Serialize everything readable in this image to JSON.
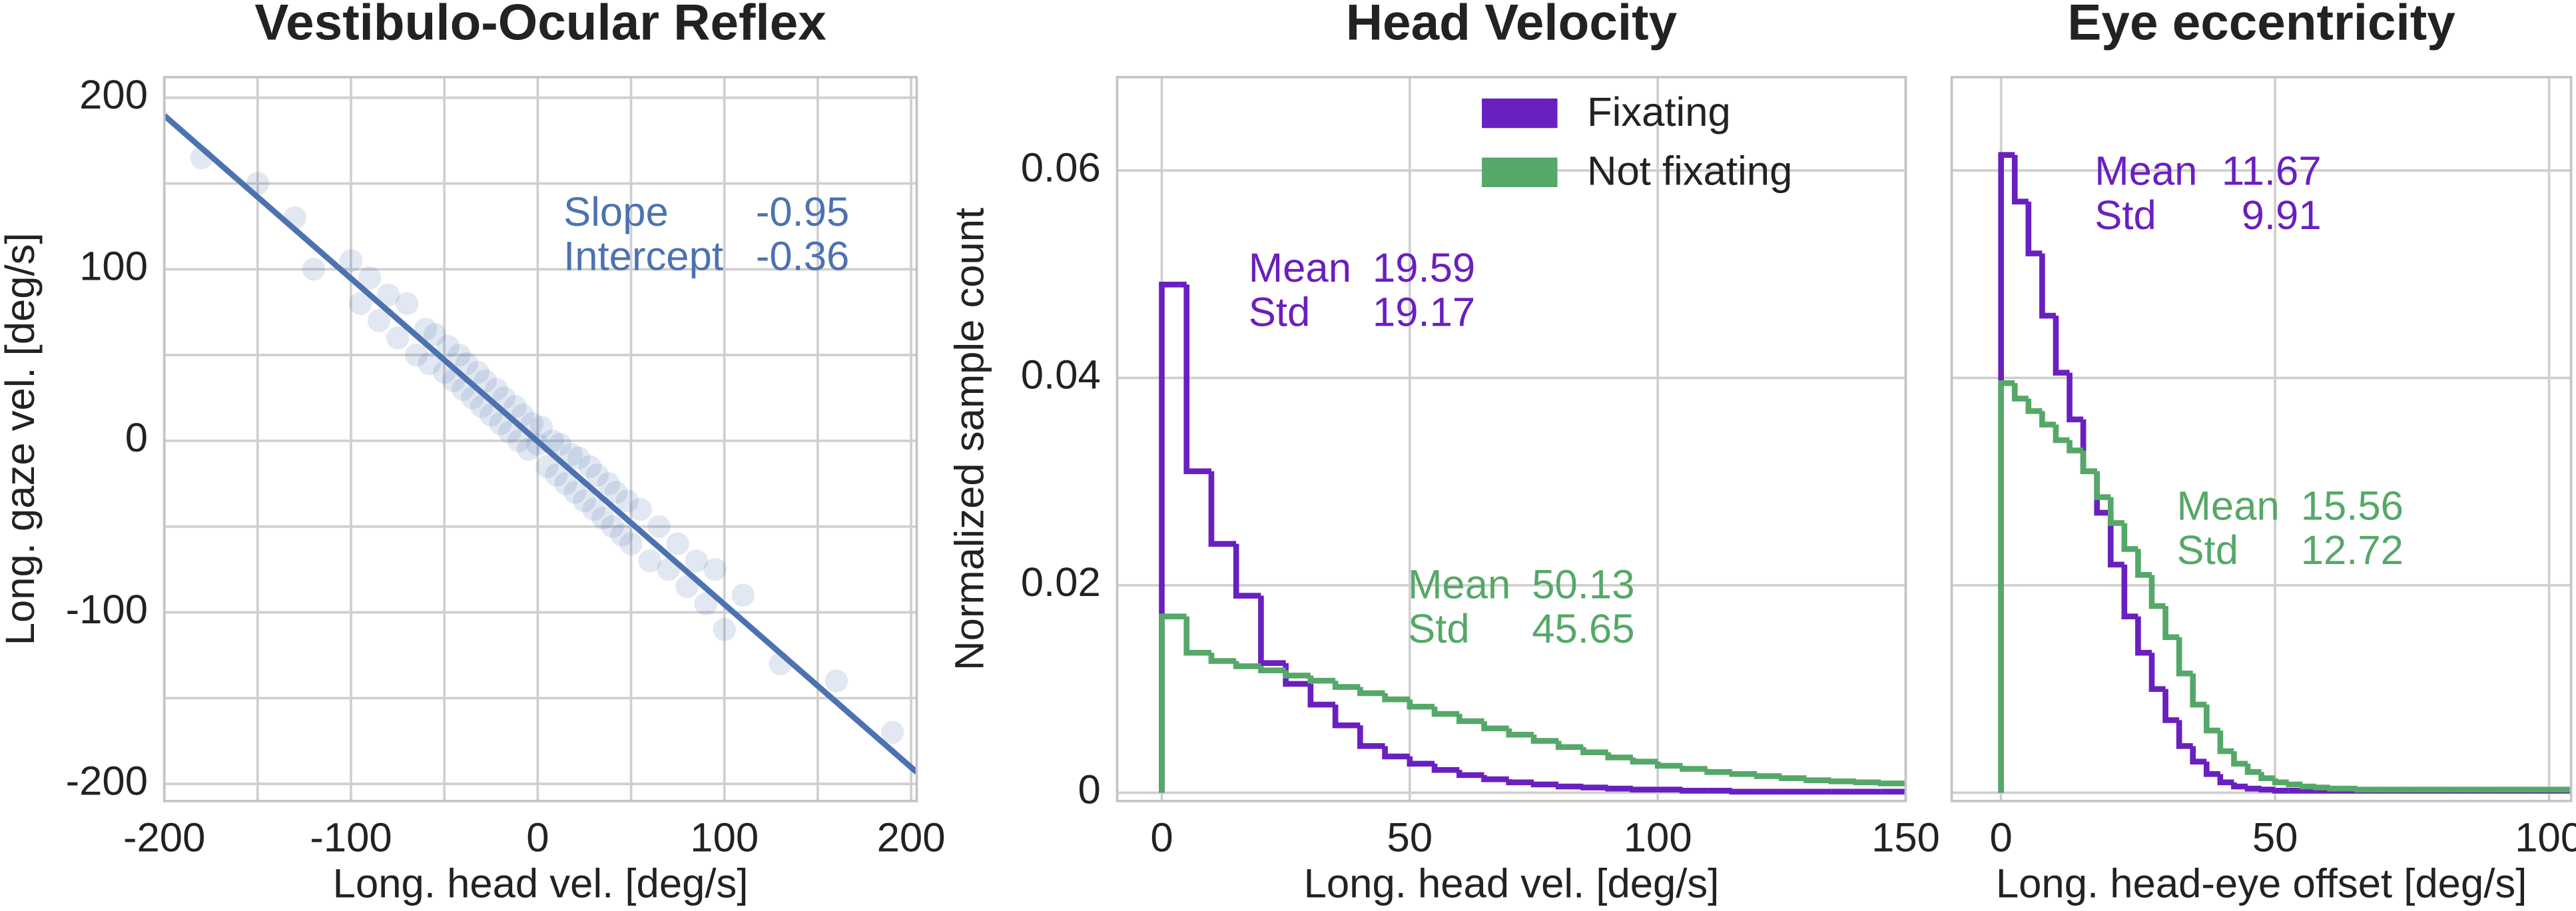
{
  "chart_data": [
    {
      "type": "scatter",
      "title": "Vestibulo-Ocular Reflex",
      "xlabel": "Long. head vel. [deg/s]",
      "ylabel": "Long. gaze vel. [deg/s]",
      "color": "#4c72b0",
      "xlim": [
        -200,
        203
      ],
      "ylim": [
        -210,
        212
      ],
      "xticks": [
        -200,
        -100,
        0,
        100,
        200
      ],
      "yticks": [
        -200,
        -100,
        0,
        100,
        200
      ],
      "xgrid": [
        -150,
        -50,
        50,
        150
      ],
      "ygrid": [
        -150,
        -50,
        50,
        150
      ],
      "x": [
        -180,
        -150,
        -120,
        -100,
        -95,
        -90,
        -85,
        -80,
        -75,
        -70,
        -65,
        -60,
        -58,
        -55,
        -50,
        -48,
        -45,
        -42,
        -40,
        -38,
        -35,
        -32,
        -30,
        -28,
        -25,
        -22,
        -20,
        -18,
        -15,
        -12,
        -10,
        -8,
        -5,
        -3,
        0,
        2,
        5,
        8,
        10,
        12,
        15,
        18,
        20,
        22,
        25,
        28,
        30,
        32,
        35,
        38,
        40,
        42,
        45,
        48,
        50,
        55,
        60,
        65,
        70,
        75,
        80,
        85,
        90,
        95,
        100,
        110,
        130,
        160,
        190,
        -130
      ],
      "y": [
        165,
        150,
        100,
        105,
        80,
        95,
        70,
        85,
        60,
        80,
        50,
        65,
        45,
        62,
        40,
        55,
        35,
        50,
        30,
        45,
        25,
        40,
        20,
        35,
        15,
        30,
        10,
        25,
        5,
        20,
        0,
        15,
        -5,
        10,
        -2,
        8,
        -15,
        0,
        -20,
        -2,
        -25,
        -8,
        -30,
        -10,
        -35,
        -15,
        -40,
        -20,
        -45,
        -25,
        -50,
        -30,
        -55,
        -35,
        -60,
        -40,
        -70,
        -50,
        -75,
        -60,
        -85,
        -70,
        -95,
        -75,
        -110,
        -90,
        -130,
        -140,
        -170,
        130
      ],
      "annotations": [
        {
          "label": "Slope",
          "value": -0.95
        },
        {
          "label": "Intercept",
          "value": -0.36
        }
      ]
    },
    {
      "type": "histogram",
      "title": "Head Velocity",
      "xlabel": "Long. head vel. [deg/s]",
      "ylabel": "Normalized sample count",
      "xlim": [
        -9,
        150
      ],
      "ylim": [
        -0.0008,
        0.069
      ],
      "xticks": [
        0,
        50,
        100,
        150
      ],
      "yticks": [
        0,
        0.02,
        0.04,
        0.06
      ],
      "legend": "upper right",
      "stat_labels": [
        "Mean",
        "Std"
      ],
      "bins": [
        0,
        5,
        10,
        15,
        20,
        25,
        30,
        35,
        40,
        45,
        50,
        55,
        60,
        65,
        70,
        75,
        80,
        85,
        90,
        95,
        100,
        105,
        110,
        115,
        120,
        125,
        130,
        135,
        140,
        145,
        150
      ],
      "series": [
        {
          "name": "Fixating",
          "color": "#6a1fbf",
          "mean": 19.59,
          "std": 19.17,
          "values": [
            0.049,
            0.031,
            0.024,
            0.019,
            0.0125,
            0.0105,
            0.0085,
            0.0065,
            0.0045,
            0.0035,
            0.0028,
            0.0022,
            0.0017,
            0.0013,
            0.001,
            0.0008,
            0.0006,
            0.0005,
            0.0004,
            0.0003,
            0.0003,
            0.0002,
            0.0002,
            0.0001,
            0.0001,
            0.0001,
            0.0001,
            0.0001,
            0.0001,
            0.0001
          ]
        },
        {
          "name": "Not fixating",
          "color": "#55a868",
          "mean": 50.13,
          "std": 45.65,
          "values": [
            0.017,
            0.0135,
            0.0127,
            0.0122,
            0.0118,
            0.0113,
            0.0108,
            0.0102,
            0.0096,
            0.009,
            0.0083,
            0.0076,
            0.0069,
            0.0062,
            0.0056,
            0.005,
            0.0044,
            0.0039,
            0.0034,
            0.003,
            0.0026,
            0.0023,
            0.002,
            0.0018,
            0.0016,
            0.0014,
            0.0012,
            0.0011,
            0.001,
            0.0009
          ]
        }
      ]
    },
    {
      "type": "histogram",
      "title": "Eye eccentricity",
      "xlabel": "Long. head-eye offset [deg/s]",
      "xlim": [
        -9,
        104
      ],
      "ylim": [
        -0.0008,
        0.069
      ],
      "xticks": [
        0,
        50,
        100
      ],
      "ygrid": [
        0,
        0.02,
        0.04,
        0.06
      ],
      "stat_labels": [
        "Mean",
        "Std"
      ],
      "bins": [
        0,
        2.5,
        5,
        7.5,
        10,
        12.5,
        15,
        17.5,
        20,
        22.5,
        25,
        27.5,
        30,
        32.5,
        35,
        37.5,
        40,
        42.5,
        45,
        47.5,
        50,
        52.5,
        55,
        57.5,
        60,
        62.5,
        65,
        67.5,
        70,
        72.5,
        75,
        77.5,
        80,
        82.5,
        85,
        87.5,
        90,
        92.5,
        95,
        97.5,
        100,
        102.5,
        105
      ],
      "series": [
        {
          "name": "Fixating",
          "color": "#6a1fbf",
          "mean": 11.67,
          "std": 9.91,
          "values": [
            0.0615,
            0.057,
            0.052,
            0.046,
            0.0405,
            0.036,
            0.031,
            0.027,
            0.022,
            0.017,
            0.0135,
            0.01,
            0.007,
            0.0045,
            0.003,
            0.0018,
            0.001,
            0.0006,
            0.0004,
            0.0003,
            0.0002,
            0.0002,
            0.0002,
            0.0002,
            0.0002,
            0.0002,
            0.0002,
            0.0002,
            0.0002,
            0.0002,
            0.0002,
            0.0002,
            0.0002,
            0.0002,
            0.0002,
            0.0002,
            0.0002,
            0.0002,
            0.0002,
            0.0002,
            0.0002,
            0.0002
          ]
        },
        {
          "name": "Not fixating",
          "color": "#55a868",
          "mean": 15.56,
          "std": 12.72,
          "values": [
            0.0395,
            0.038,
            0.0368,
            0.0355,
            0.034,
            0.033,
            0.031,
            0.0285,
            0.026,
            0.0235,
            0.021,
            0.018,
            0.015,
            0.0115,
            0.0085,
            0.006,
            0.004,
            0.0028,
            0.002,
            0.0014,
            0.001,
            0.0008,
            0.0006,
            0.0005,
            0.0004,
            0.0004,
            0.0003,
            0.0003,
            0.0003,
            0.0003,
            0.0003,
            0.0003,
            0.0003,
            0.0003,
            0.0003,
            0.0003,
            0.0003,
            0.0003,
            0.0003,
            0.0003,
            0.0003,
            0.0003
          ]
        }
      ]
    }
  ]
}
